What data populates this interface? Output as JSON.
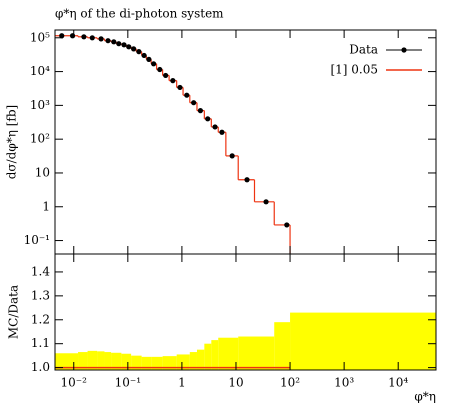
{
  "chart_data": {
    "type": "ratio-plot",
    "title": "φ*η of the di-photon system",
    "ylabel": "dσ/dφ*η [fb]",
    "xlabel": "φ*η",
    "ratio_ylabel": "MC/Data",
    "log_x": true,
    "log_y": true,
    "xlim": [
      0.0045,
      50000
    ],
    "ylim": [
      0.04,
      170000
    ],
    "ratio_ylim": [
      0.99,
      1.475
    ],
    "xticks": [
      {
        "value": 0.01,
        "label": "10⁻²"
      },
      {
        "value": 0.1,
        "label": "10⁻¹"
      },
      1,
      10,
      {
        "value": 100,
        "label": "10²"
      },
      {
        "value": 1000,
        "label": "10³"
      },
      {
        "value": 10000,
        "label": "10⁴"
      }
    ],
    "yticks": [
      {
        "value": 100000,
        "label": "10⁵"
      },
      {
        "value": 10000,
        "label": "10⁴"
      },
      {
        "value": 1000,
        "label": "10³"
      },
      {
        "value": 100,
        "label": "10²"
      },
      10,
      1,
      {
        "value": 0.1,
        "label": "10⁻¹"
      }
    ],
    "ratio_yticks": [
      {
        "value": 1.0,
        "label": "1.0"
      },
      1.1,
      1.2,
      1.3,
      1.4
    ],
    "legend": "upper right",
    "data": {
      "name": "Data",
      "color": "#000000",
      "x": [
        0.006,
        0.0095,
        0.0154,
        0.022,
        0.032,
        0.043,
        0.055,
        0.068,
        0.085,
        0.104,
        0.128,
        0.16,
        0.2,
        0.245,
        0.3,
        0.39,
        0.5,
        0.68,
        0.92,
        1.23,
        1.65,
        2.2,
        3.0,
        4.1,
        5.5,
        8.5,
        16,
        36,
        87
      ],
      "values": [
        115000,
        115000,
        107000,
        100000,
        93000,
        82000,
        76000,
        67000,
        62000,
        54000,
        47000,
        39000,
        30000,
        23000,
        17000,
        11500,
        7700,
        5400,
        3400,
        2000,
        1200,
        700,
        400,
        230,
        160,
        32,
        6.3,
        1.4,
        0.29
      ]
    },
    "mc": {
      "name": "[1] 0.05",
      "color": "#ee3311",
      "bins": [
        0.004,
        0.0075,
        0.012,
        0.018,
        0.027,
        0.037,
        0.049,
        0.061,
        0.076,
        0.094,
        0.115,
        0.143,
        0.18,
        0.22,
        0.27,
        0.34,
        0.44,
        0.58,
        0.8,
        1.05,
        1.4,
        1.9,
        2.6,
        3.5,
        4.7,
        6.5,
        11,
        22,
        51,
        100
      ],
      "values": [
        115000,
        115000,
        107000,
        100000,
        93000,
        82000,
        76000,
        67000,
        62000,
        54000,
        47000,
        39000,
        30000,
        23000,
        17000,
        11500,
        7700,
        5400,
        3400,
        2000,
        1200,
        700,
        400,
        230,
        160,
        32,
        6.3,
        1.4,
        0.29
      ]
    },
    "band": {
      "color": "#ffff00",
      "bins": [
        0.004,
        0.012,
        0.018,
        0.027,
        0.037,
        0.049,
        0.076,
        0.115,
        0.18,
        0.27,
        0.44,
        0.8,
        1.4,
        1.9,
        2.6,
        3.5,
        4.7,
        11,
        51,
        100,
        50000
      ],
      "values": [
        1.06,
        1.065,
        1.07,
        1.068,
        1.065,
        1.062,
        1.058,
        1.05,
        1.045,
        1.045,
        1.048,
        1.055,
        1.065,
        1.075,
        1.1,
        1.115,
        1.125,
        1.13,
        1.19,
        1.23
      ]
    }
  }
}
